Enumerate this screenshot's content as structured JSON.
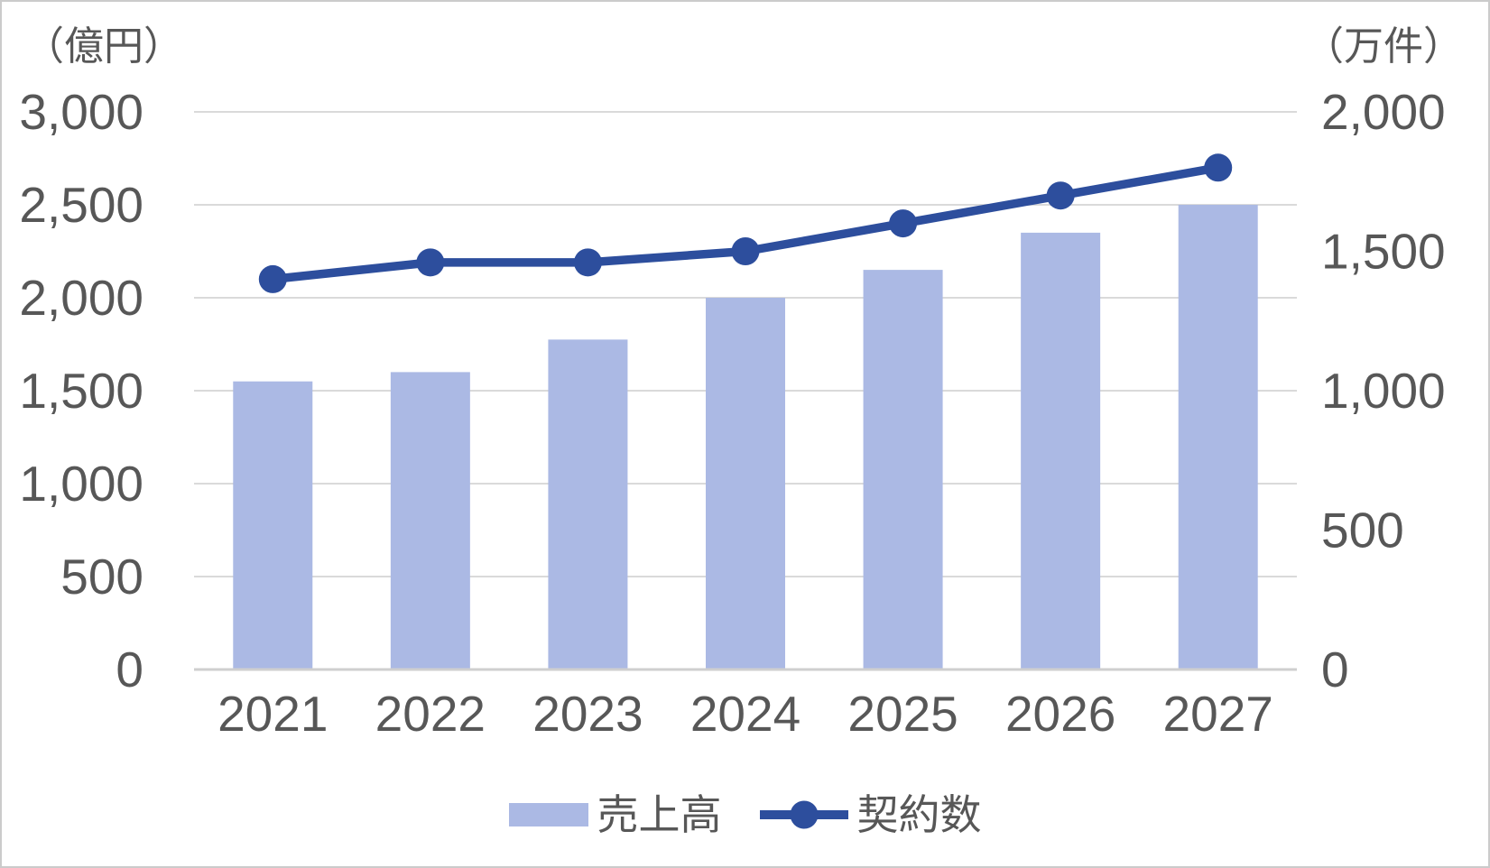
{
  "chart_data": {
    "type": "bar",
    "subtype": "combo-bar-line-dual-axis",
    "categories": [
      "2021",
      "2022",
      "2023",
      "2024",
      "2025",
      "2026",
      "2027"
    ],
    "series": [
      {
        "name": "売上高",
        "type": "bar",
        "axis": "left",
        "unit": "億円",
        "color": "#abb9e4",
        "values": [
          1550,
          1600,
          1775,
          2000,
          2150,
          2350,
          2500
        ]
      },
      {
        "name": "契約数",
        "type": "line",
        "axis": "right",
        "unit": "万件",
        "color": "#2d4e9d",
        "values": [
          1400,
          1460,
          1460,
          1500,
          1600,
          1700,
          1800
        ]
      }
    ],
    "title": "",
    "xlabel": "",
    "left_axis": {
      "title": "（億円）",
      "min": 0,
      "max": 3000,
      "tick_step": 500,
      "ticks": [
        "3,000",
        "2,500",
        "2,000",
        "1,500",
        "1,000",
        "500",
        "0"
      ]
    },
    "right_axis": {
      "title": "（万件）",
      "min": 0,
      "max": 2000,
      "tick_step": 500,
      "ticks": [
        "2,000",
        "1,500",
        "1,000",
        "500",
        "0"
      ]
    },
    "grid": true,
    "legend_position": "bottom"
  },
  "legend": {
    "bar_label": "売上高",
    "line_label": "契約数"
  },
  "colors": {
    "bar_fill": "#abb9e4",
    "line_stroke": "#2d4e9d",
    "gridline": "#dadada",
    "axis_line": "#cfcfcf",
    "text": "#575757",
    "frame_border": "#cbcbcb",
    "background": "#ffffff"
  }
}
